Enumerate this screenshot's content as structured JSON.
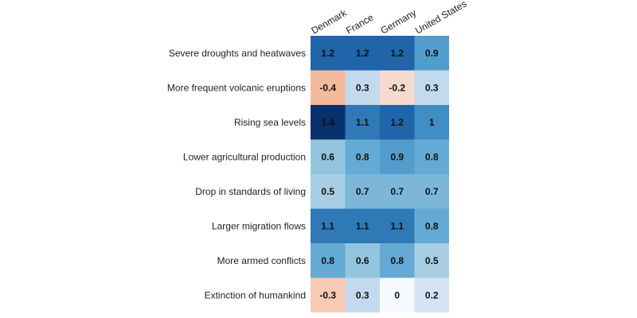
{
  "chart_data": {
    "type": "heatmap",
    "title": "",
    "xlabel": "",
    "ylabel": "",
    "columns": [
      "Denmark",
      "France",
      "Germany",
      "United States"
    ],
    "rows": [
      "Severe droughts and heatwaves",
      "More frequent volcanic eruptions",
      "Rising sea levels",
      "Lower agricultural production",
      "Drop in standards of living",
      "Larger migration flows",
      "More armed conflicts",
      "Extinction of humankind"
    ],
    "values": [
      [
        1.2,
        1.2,
        1.2,
        0.9
      ],
      [
        -0.4,
        0.3,
        -0.2,
        0.3
      ],
      [
        1.4,
        1.1,
        1.2,
        1
      ],
      [
        0.6,
        0.8,
        0.9,
        0.8
      ],
      [
        0.5,
        0.7,
        0.7,
        0.7
      ],
      [
        1.1,
        1.1,
        1.1,
        0.8
      ],
      [
        0.8,
        0.6,
        0.8,
        0.5
      ],
      [
        -0.3,
        0.3,
        0,
        0.2
      ]
    ],
    "color_scale": {
      "negative": "#f5b99c",
      "zero": "#f7fbff",
      "positive_max": "#08306b"
    }
  }
}
